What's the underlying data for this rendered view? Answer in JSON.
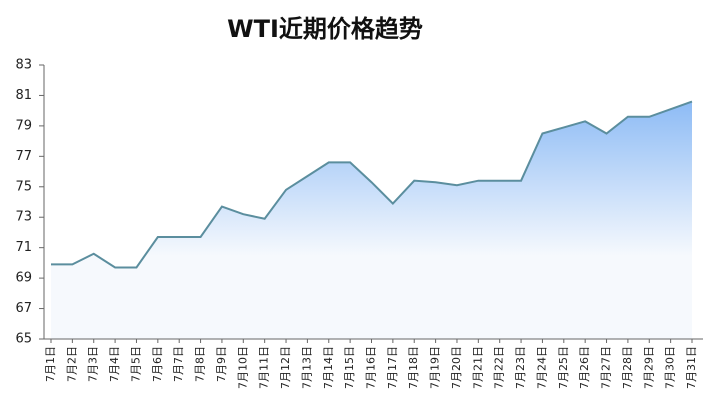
{
  "chart_data": {
    "type": "area",
    "title": "WTI近期价格趋势",
    "categories": [
      "7月1日",
      "7月2日",
      "7月3日",
      "7月4日",
      "7月5日",
      "7月6日",
      "7月7日",
      "7月8日",
      "7月9日",
      "7月10日",
      "7月11日",
      "7月12日",
      "7月13日",
      "7月14日",
      "7月15日",
      "7月16日",
      "7月17日",
      "7月18日",
      "7月19日",
      "7月20日",
      "7月21日",
      "7月22日",
      "7月23日",
      "7月24日",
      "7月25日",
      "7月26日",
      "7月27日",
      "7月28日",
      "7月29日",
      "7月30日",
      "7月31日"
    ],
    "values": [
      69.9,
      69.9,
      70.6,
      69.7,
      69.7,
      71.7,
      71.7,
      71.7,
      73.7,
      73.2,
      72.9,
      74.8,
      75.7,
      76.6,
      76.6,
      75.3,
      73.9,
      75.4,
      75.3,
      75.1,
      75.4,
      75.4,
      75.4,
      78.5,
      78.9,
      79.3,
      78.5,
      79.6,
      79.6,
      80.1,
      80.6
    ],
    "color": "#5b8e9e",
    "fill_top": "#8dbbf5",
    "fill_bottom": "#f6f9fd",
    "ylim": [
      65,
      83
    ],
    "yticks": [
      65,
      67,
      69,
      71,
      73,
      75,
      77,
      79,
      81,
      83
    ]
  }
}
